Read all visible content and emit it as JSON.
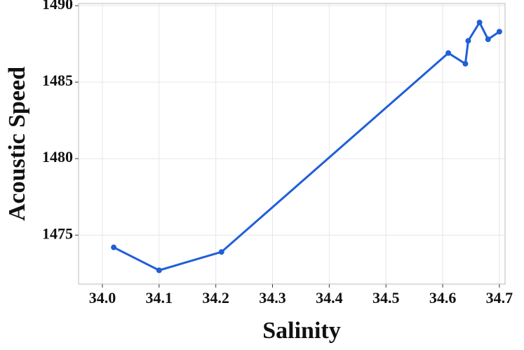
{
  "chart_data": {
    "type": "line",
    "x_label": "Salinity",
    "y_label": "Acoustic Speed",
    "series": [
      {
        "color": "#1f5fd8",
        "x": [
          34.02,
          34.1,
          34.21,
          34.61,
          34.64,
          34.645,
          34.665,
          34.68,
          34.7
        ],
        "values": [
          1474.2,
          1472.7,
          1473.9,
          1486.9,
          1486.2,
          1487.7,
          1488.9,
          1487.8,
          1488.3
        ]
      }
    ],
    "xlim": [
      33.958,
      34.71
    ],
    "ylim": [
      1471.8,
      1490.14
    ],
    "xticks": [
      {
        "value": 34,
        "label": "34.0"
      },
      34.1,
      34.2,
      34.3,
      34.4,
      34.5,
      34.6,
      34.7
    ],
    "yticks": [
      1475,
      1480,
      1485,
      1490
    ],
    "grid": true
  }
}
